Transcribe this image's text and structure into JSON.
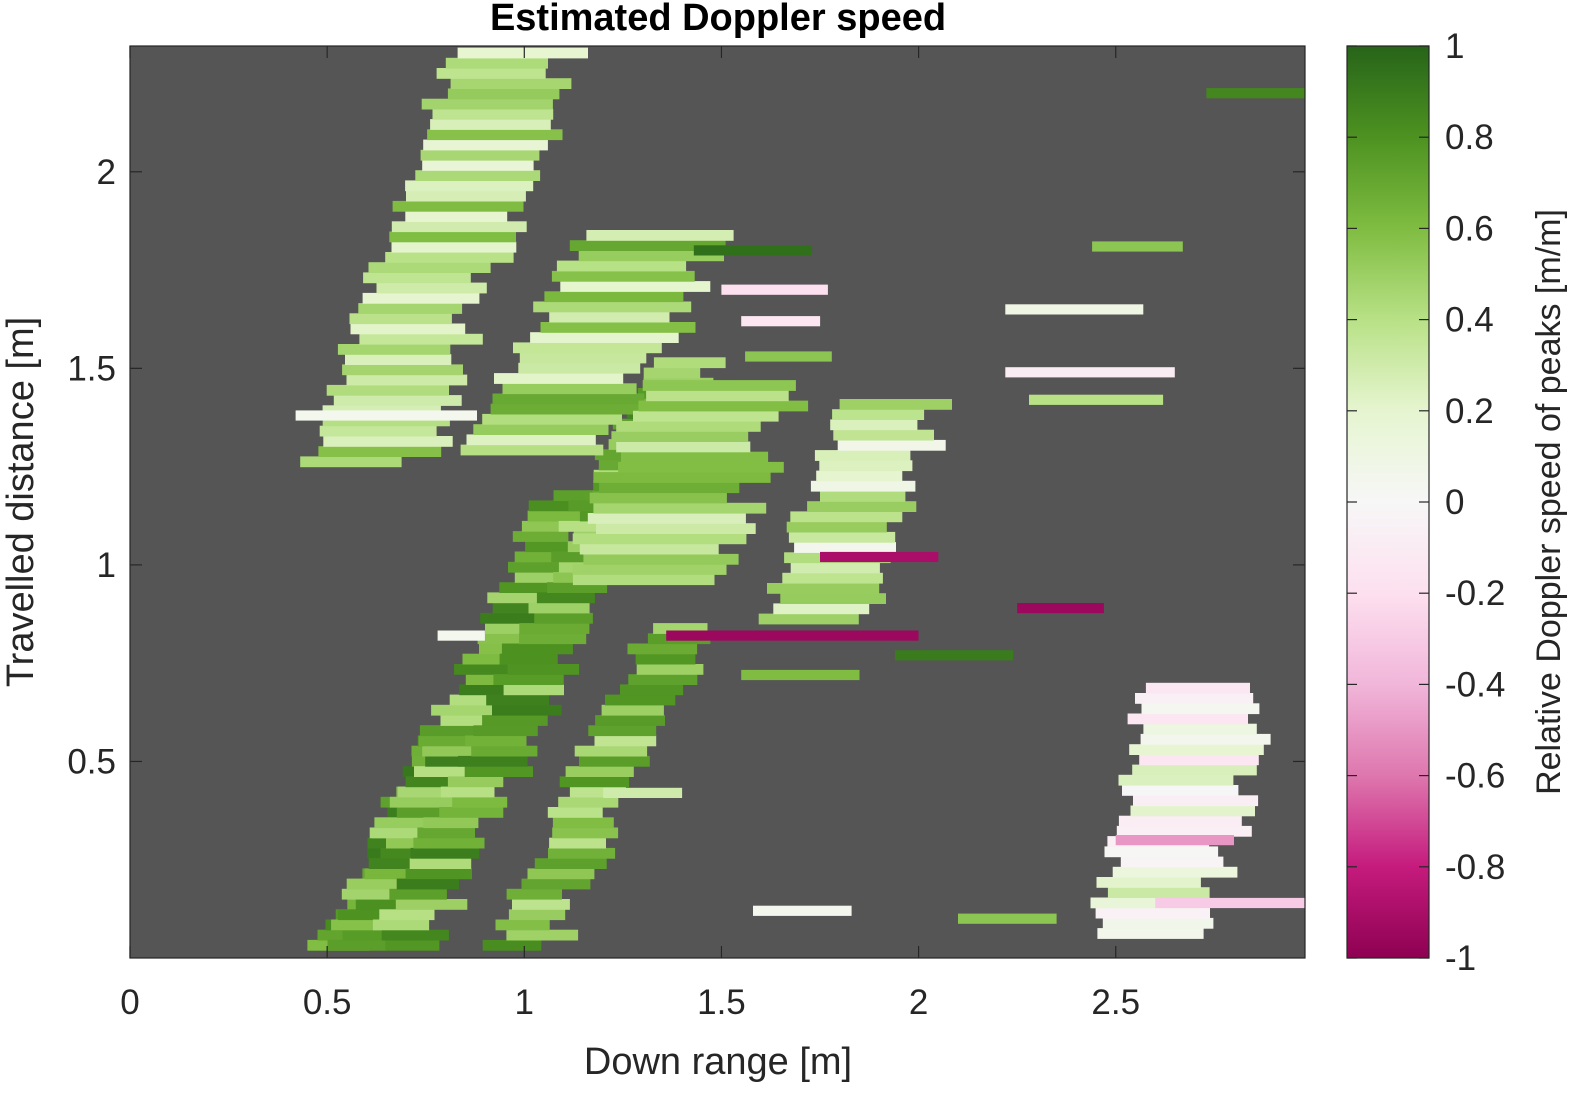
{
  "chart_data": {
    "type": "heatmap",
    "title": "Estimated Doppler speed",
    "xlabel": "Down range [m]",
    "ylabel": "Travelled distance [m]",
    "colorbar_label": "Relative Doppler speed of peaks [m/m]",
    "xlim": [
      0,
      2.98
    ],
    "ylim": [
      0,
      2.32
    ],
    "clim": [
      -1,
      1
    ],
    "xticks": [
      0,
      0.5,
      1,
      1.5,
      2,
      2.5
    ],
    "xtick_labels": [
      "0",
      "0.5",
      "1",
      "1.5",
      "2",
      "2.5"
    ],
    "yticks": [
      0.5,
      1,
      1.5,
      2
    ],
    "ytick_labels": [
      "0.5",
      "1",
      "1.5",
      "2"
    ],
    "cticks": [
      1,
      0.8,
      0.6,
      0.4,
      0.2,
      0,
      -0.2,
      -0.4,
      -0.6,
      -0.8,
      -1
    ],
    "ctick_labels": [
      "1",
      "0.8",
      "0.6",
      "0.4",
      "0.2",
      "0",
      "-0.2",
      "-0.4",
      "-0.6",
      "-0.8",
      "-1"
    ],
    "background_color": "#555555",
    "colormap": "PiYG",
    "grid": false,
    "bands": [
      {
        "x_start": 0.48,
        "x_end": 0.62,
        "x_end_top": 0.6,
        "y_start": 0.02,
        "y_end": 0.6,
        "slant": -0.5,
        "value": 0.7
      },
      {
        "x_start": 0.5,
        "x_end": 0.65,
        "y_start": 0.02,
        "y_end": 1.18,
        "slant": -0.48,
        "value": 0.65
      },
      {
        "x_start": 0.62,
        "x_end": 0.78,
        "y_start": 0.02,
        "y_end": 1.52,
        "slant": -0.46,
        "value": 0.65
      },
      {
        "x_start": 0.92,
        "x_end": 1.08,
        "y_start": 0.02,
        "y_end": 0.85,
        "slant": -0.48,
        "value": 0.6
      },
      {
        "x_start": 0.45,
        "x_end": 0.75,
        "y_start": 1.25,
        "y_end": 2.3,
        "slant": -0.35,
        "value": 0.4
      },
      {
        "x_start": 0.85,
        "x_end": 1.2,
        "y_start": 1.28,
        "y_end": 1.85,
        "slant": -0.55,
        "value": 0.45
      },
      {
        "x_start": 1.1,
        "x_end": 1.5,
        "y_start": 0.95,
        "y_end": 1.45,
        "slant": -0.4,
        "value": 0.5
      },
      {
        "x_start": 1.6,
        "x_end": 1.85,
        "y_start": 0.85,
        "y_end": 1.4,
        "slant": -0.4,
        "value": 0.3
      },
      {
        "x_start": 2.45,
        "x_end": 2.75,
        "y_start": 0.05,
        "y_end": 0.7,
        "slant": -0.2,
        "value": 0.1
      }
    ],
    "segments": [
      {
        "x": [
          1.43,
          1.73
        ],
        "y": 1.8,
        "value": 0.95
      },
      {
        "x": [
          1.5,
          1.77
        ],
        "y": 1.7,
        "value": -0.2
      },
      {
        "x": [
          1.55,
          1.75
        ],
        "y": 1.62,
        "value": -0.15
      },
      {
        "x": [
          1.56,
          1.78
        ],
        "y": 1.53,
        "value": 0.55
      },
      {
        "x": [
          1.36,
          2.0
        ],
        "y": 0.82,
        "value": -0.95
      },
      {
        "x": [
          1.58,
          1.83
        ],
        "y": 0.12,
        "value": 0.05
      },
      {
        "x": [
          1.94,
          2.24
        ],
        "y": 0.77,
        "value": 0.9
      },
      {
        "x": [
          2.25,
          2.47
        ],
        "y": 0.89,
        "value": -0.95
      },
      {
        "x": [
          2.44,
          2.67
        ],
        "y": 1.81,
        "value": 0.55
      },
      {
        "x": [
          2.22,
          2.57
        ],
        "y": 1.65,
        "value": 0.1
      },
      {
        "x": [
          2.22,
          2.65
        ],
        "y": 1.49,
        "value": -0.1
      },
      {
        "x": [
          2.28,
          2.62
        ],
        "y": 1.42,
        "value": 0.4
      },
      {
        "x": [
          2.1,
          2.35
        ],
        "y": 0.1,
        "value": 0.55
      },
      {
        "x": [
          0.42,
          0.88
        ],
        "y": 1.38,
        "value": 0.05
      },
      {
        "x": [
          0.78,
          0.9
        ],
        "y": 0.82,
        "value": 0.05
      },
      {
        "x": [
          1.55,
          1.85
        ],
        "y": 0.72,
        "value": 0.6
      },
      {
        "x": [
          1.2,
          1.4
        ],
        "y": 0.42,
        "value": 0.3
      },
      {
        "x": [
          2.73,
          2.98
        ],
        "y": 2.2,
        "value": 0.85
      },
      {
        "x": [
          1.75,
          2.05
        ],
        "y": 1.02,
        "value": -0.9
      },
      {
        "x": [
          2.5,
          2.8
        ],
        "y": 0.3,
        "value": -0.5
      },
      {
        "x": [
          2.6,
          2.98
        ],
        "y": 0.14,
        "value": -0.3
      }
    ]
  }
}
